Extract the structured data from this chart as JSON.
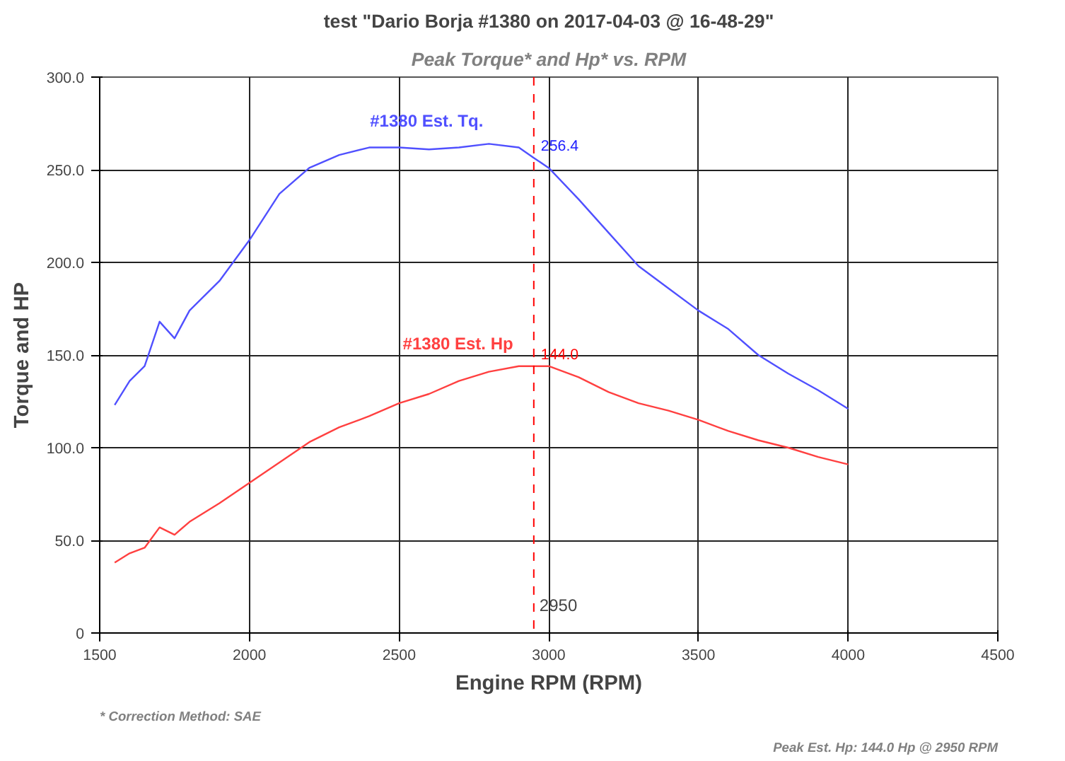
{
  "chart_data": {
    "type": "line",
    "title": "test \"Dario Borja #1380 on 2017-04-03 @ 16-48-29\"",
    "subtitle": "Peak Torque* and Hp* vs. RPM",
    "xlabel": "Engine RPM (RPM)",
    "ylabel": "Torque and HP",
    "x": [
      1550,
      1600,
      1650,
      1700,
      1750,
      1800,
      1900,
      2000,
      2100,
      2200,
      2300,
      2400,
      2500,
      2600,
      2700,
      2800,
      2900,
      2950,
      3000,
      3100,
      3200,
      3300,
      3400,
      3500,
      3600,
      3700,
      3800,
      3900,
      4000
    ],
    "series": [
      {
        "name": "#1380 Est. Tq.",
        "color": "#5050ff",
        "values": [
          123,
          136,
          144,
          168,
          159,
          174,
          190,
          212,
          237,
          251,
          258,
          262,
          262,
          261,
          262,
          264,
          262,
          256.4,
          251,
          234,
          216,
          198,
          186,
          174,
          164,
          150,
          140,
          131,
          121
        ]
      },
      {
        "name": "#1380 Est. Hp",
        "color": "#ff4040",
        "values": [
          38,
          43,
          46,
          57,
          53,
          60,
          70,
          81,
          92,
          103,
          111,
          117,
          124,
          129,
          136,
          141,
          144,
          144.0,
          144,
          138,
          130,
          124,
          120,
          115,
          109,
          104,
          100,
          95,
          91
        ]
      }
    ],
    "xlim": [
      1500,
      4500
    ],
    "xticks": [
      1500,
      2000,
      2500,
      3000,
      3500,
      4000,
      4500
    ],
    "ylim": [
      0,
      300
    ],
    "yticks": [
      {
        "value": 0,
        "label": "0"
      },
      {
        "value": 50,
        "label": "50.0"
      },
      {
        "value": 100,
        "label": "100.0"
      },
      {
        "value": 150,
        "label": "150.0"
      },
      {
        "value": 200,
        "label": "200.0"
      },
      {
        "value": 250,
        "label": "250.0"
      },
      {
        "value": 300,
        "label": "300.0"
      }
    ],
    "grid": true,
    "legend": false,
    "marker": "none",
    "line_style": "solid",
    "ref_lines": [
      {
        "axis": "x",
        "value": 2950,
        "label": "2950",
        "color": "#ff0000",
        "line_style": "dashed"
      }
    ],
    "annotations": [
      {
        "text": "256.4",
        "x": 2950,
        "y": 256.4
      },
      {
        "text": "144.0",
        "x": 2950,
        "y": 144.0
      },
      "* Correction Method: SAE",
      "Peak Est. Hp: 144.0 Hp @ 2950 RPM"
    ]
  }
}
